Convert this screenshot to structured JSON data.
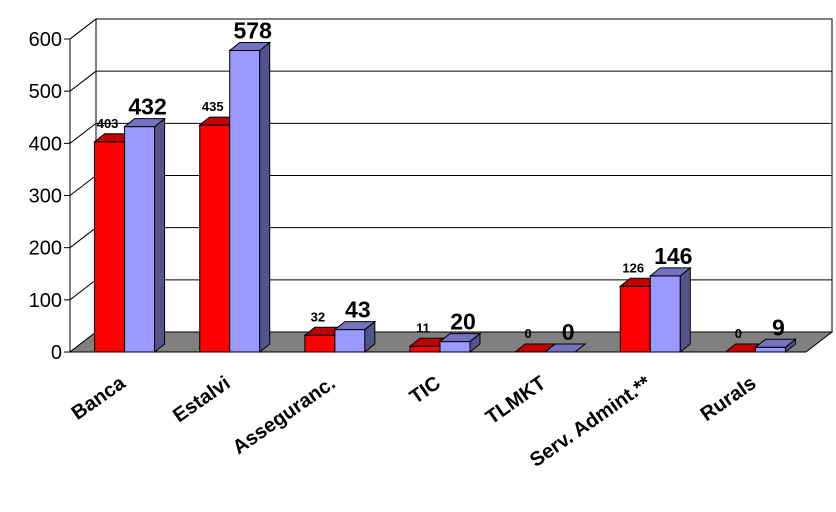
{
  "chart_data": {
    "type": "bar",
    "three_d": true,
    "categories": [
      "Banca",
      "Estalvi",
      "Asseguranc.",
      "TIC",
      "TLMKT",
      "Serv. Admint.**",
      "Rurals"
    ],
    "series": [
      {
        "values": [
          403,
          435,
          32,
          11,
          0,
          126,
          0
        ],
        "color": "#ff0000"
      },
      {
        "values": [
          432,
          578,
          43,
          20,
          0,
          146,
          9
        ],
        "color": "#9999ff"
      }
    ],
    "yticks": [
      "0",
      "100",
      "200",
      "300",
      "400",
      "500",
      "600"
    ],
    "ylim": [
      0,
      600
    ],
    "grid": true,
    "legend": "none",
    "colors": {
      "floor": "#808080",
      "wall": "#ffffff",
      "grid": "#000000"
    }
  }
}
